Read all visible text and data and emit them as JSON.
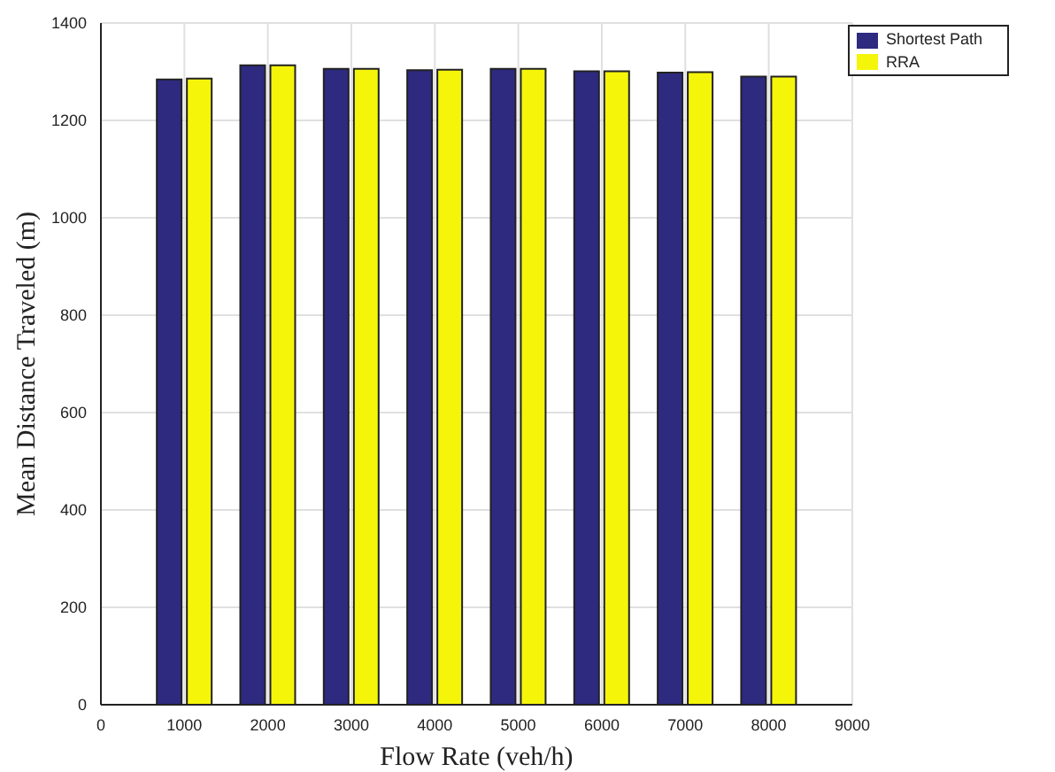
{
  "chart_data": {
    "type": "bar",
    "xlabel": "Flow Rate (veh/h)",
    "ylabel": "Mean Distance Traveled (m)",
    "x": [
      1000,
      2000,
      3000,
      4000,
      5000,
      6000,
      7000,
      8000
    ],
    "series": [
      {
        "name": "Shortest Path",
        "color": "#2e2a80",
        "values": [
          1284,
          1313,
          1306,
          1303,
          1306,
          1301,
          1298,
          1290
        ]
      },
      {
        "name": "RRA",
        "color": "#f5f50a",
        "values": [
          1286,
          1313,
          1306,
          1304,
          1306,
          1301,
          1299,
          1290
        ]
      }
    ],
    "xlim": [
      0,
      9000
    ],
    "xticks": [
      0,
      1000,
      2000,
      3000,
      4000,
      5000,
      6000,
      7000,
      8000,
      9000
    ],
    "ylim": [
      0,
      1400
    ],
    "yticks": [
      0,
      200,
      400,
      600,
      800,
      1000,
      1200,
      1400
    ],
    "grid": true,
    "legend": "top right"
  }
}
